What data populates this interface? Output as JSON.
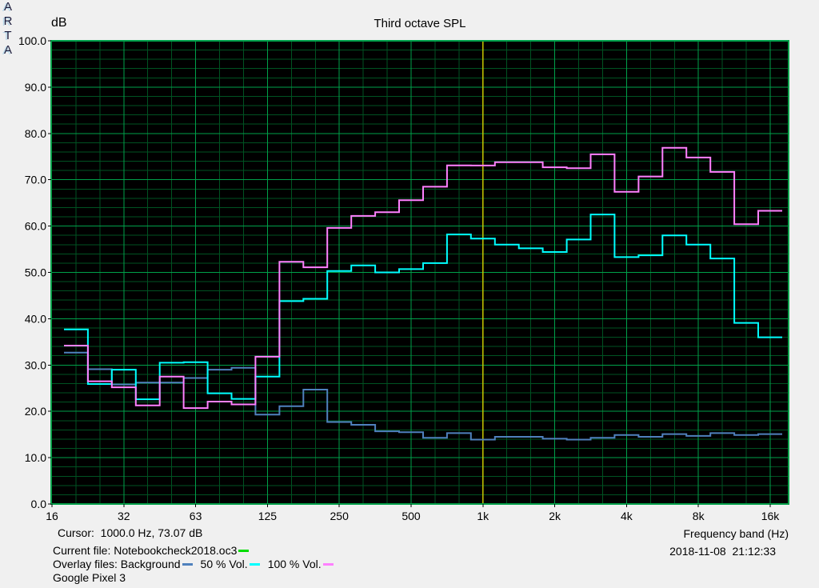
{
  "header": {
    "db_label": "dB",
    "title": "Third octave SPL",
    "logo_letters": [
      "A",
      "R",
      "T",
      "A"
    ]
  },
  "footer": {
    "cursor_text": "Cursor:  1000.0 Hz, 73.07 dB",
    "current_file_label": "Current file: Notebookcheck2018.oc3",
    "overlay_prefix": "Overlay files: Background",
    "overlay_items": [
      "50 % Vol.",
      "100 % Vol."
    ],
    "device": "Google Pixel 3",
    "xaxis_label": "Frequency band (Hz)",
    "datetime": "2018-11-08  21:12:33"
  },
  "colors": {
    "page_bg": "#f0f0f0",
    "plot_bg": "#000000",
    "grid_major": "#00a04a",
    "grid_minor": "#005222",
    "border": "#00a04a",
    "cursor_line": "#c8c800",
    "current_file_dash": "#00dd00",
    "series_background": "#4f81bd",
    "series_vol50": "#00ffff",
    "series_vol100": "#ff80ff",
    "text": "#000000"
  },
  "chart_data": {
    "type": "step-line",
    "title": "Third octave SPL",
    "xlabel": "Frequency band (Hz)",
    "ylabel": "dB",
    "ylim": [
      0,
      100
    ],
    "y_major_step": 10,
    "y_minor_step": 2,
    "grid": true,
    "legend_position": "bottom",
    "bands": [
      "16",
      "20",
      "25",
      "31.5",
      "40",
      "50",
      "63",
      "80",
      "100",
      "125",
      "160",
      "200",
      "250",
      "315",
      "400",
      "500",
      "630",
      "800",
      "1k",
      "1.25k",
      "1.6k",
      "2k",
      "2.5k",
      "3.15k",
      "4k",
      "5k",
      "6.3k",
      "8k",
      "10k",
      "12.5k",
      "16k"
    ],
    "x_tick_labels": [
      "16",
      "32",
      "63",
      "125",
      "250",
      "500",
      "1k",
      "2k",
      "4k",
      "8k",
      "16k"
    ],
    "x_tick_band_indices": [
      0,
      3,
      6,
      9,
      12,
      15,
      18,
      21,
      24,
      27,
      30
    ],
    "cursor": {
      "freq_hz": 1000.0,
      "value_db": 73.07,
      "band_index": 18
    },
    "series": [
      {
        "name": "Background",
        "color": "#4f81bd",
        "start_band_index": 1,
        "values": [
          32.7,
          29.1,
          25.8,
          26.2,
          26.2,
          27.2,
          29.0,
          29.4,
          19.3,
          21.1,
          24.7,
          17.7,
          17.1,
          15.7,
          15.5,
          14.3,
          15.3,
          13.9,
          14.5,
          14.5,
          14.1,
          13.9,
          14.3,
          14.9,
          14.5,
          15.1,
          14.7,
          15.3,
          14.9,
          15.1
        ]
      },
      {
        "name": "50 % Vol.",
        "color": "#00ffff",
        "start_band_index": 1,
        "values": [
          37.7,
          25.9,
          29.0,
          22.6,
          30.5,
          30.6,
          23.9,
          22.7,
          27.5,
          43.8,
          44.3,
          50.3,
          51.5,
          50.0,
          50.7,
          52.0,
          58.2,
          57.3,
          56.0,
          55.2,
          54.4,
          57.1,
          62.5,
          53.3,
          53.7,
          58.0,
          56.0,
          53.0,
          39.1,
          36.0
        ]
      },
      {
        "name": "100 % Vol.",
        "color": "#ff80ff",
        "start_band_index": 1,
        "values": [
          34.2,
          26.5,
          25.2,
          21.3,
          27.5,
          20.7,
          22.1,
          21.5,
          31.8,
          52.3,
          51.1,
          59.6,
          62.2,
          63.0,
          65.6,
          68.5,
          73.1,
          73.07,
          73.8,
          73.8,
          72.7,
          72.5,
          75.5,
          67.4,
          70.7,
          76.9,
          74.8,
          71.7,
          60.4,
          63.3
        ]
      }
    ]
  }
}
